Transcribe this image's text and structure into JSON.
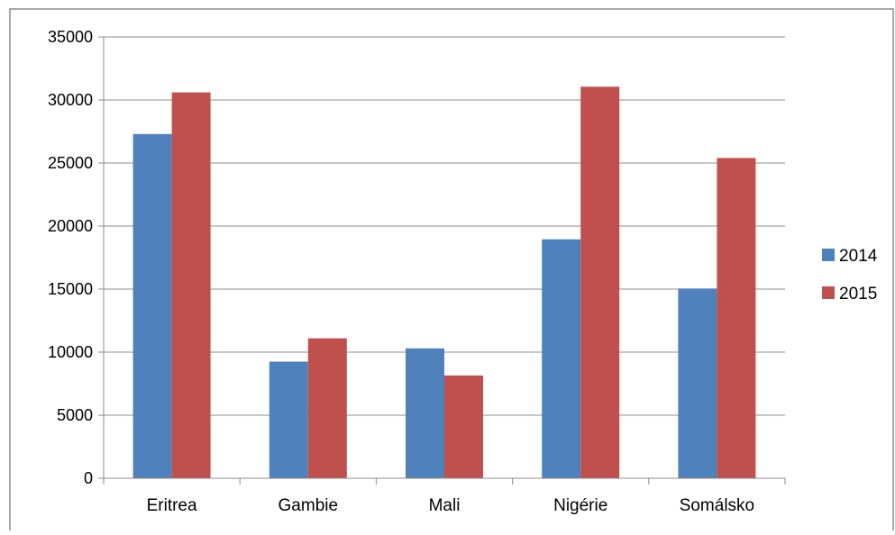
{
  "chart_data": {
    "type": "bar",
    "categories": [
      "Eritrea",
      "Gambie",
      "Mali",
      "Nigérie",
      "Somálsko"
    ],
    "series": [
      {
        "name": "2014",
        "values": [
          27300,
          9250,
          10300,
          18950,
          15050
        ],
        "color": "#4F81BD"
      },
      {
        "name": "2015",
        "values": [
          30600,
          11100,
          8150,
          31050,
          25400
        ],
        "color": "#C0504D"
      }
    ],
    "ylim": [
      0,
      35000
    ],
    "yticks": [
      0,
      5000,
      10000,
      15000,
      20000,
      25000,
      30000,
      35000
    ],
    "grid": true,
    "legend": "right",
    "title": "",
    "xlabel": "",
    "ylabel": ""
  }
}
